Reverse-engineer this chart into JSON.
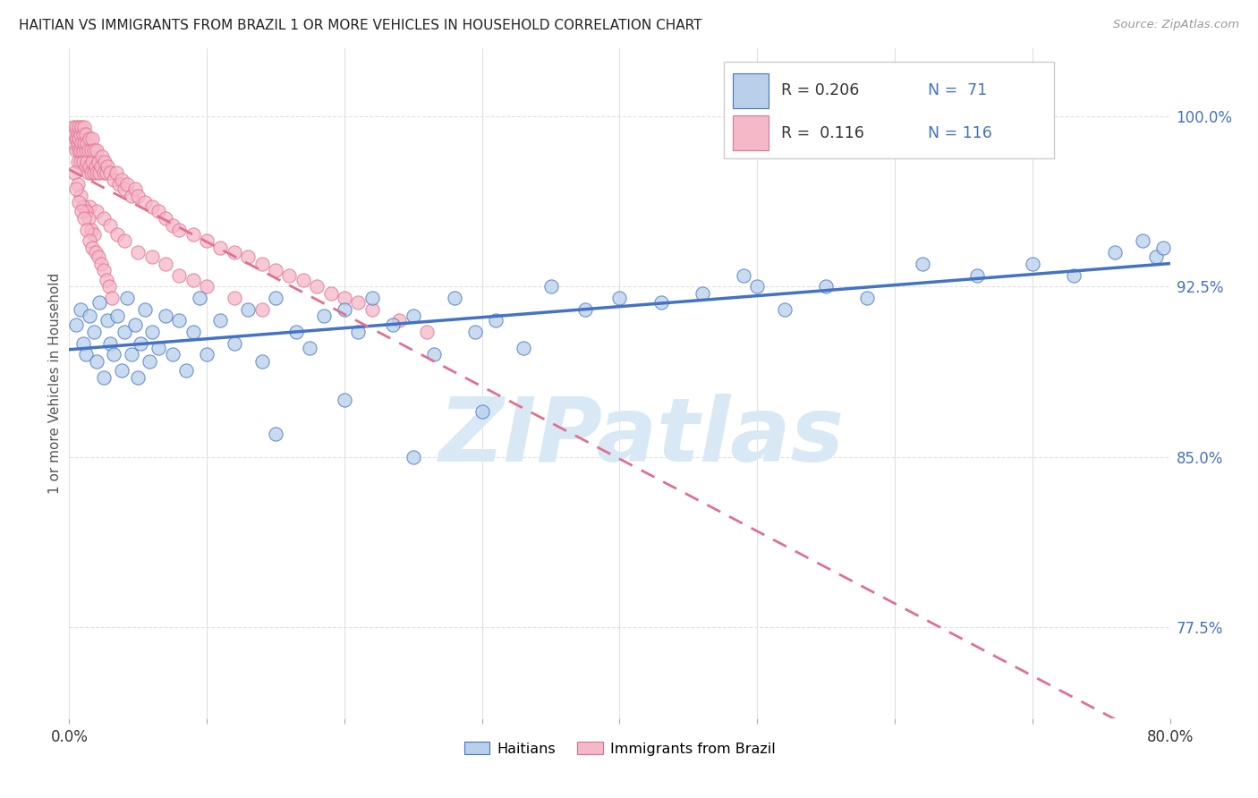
{
  "title": "HAITIAN VS IMMIGRANTS FROM BRAZIL 1 OR MORE VEHICLES IN HOUSEHOLD CORRELATION CHART",
  "source": "Source: ZipAtlas.com",
  "ylabel": "1 or more Vehicles in Household",
  "xlim": [
    0.0,
    0.8
  ],
  "ylim": [
    0.735,
    1.03
  ],
  "xticks": [
    0.0,
    0.1,
    0.2,
    0.3,
    0.4,
    0.5,
    0.6,
    0.7,
    0.8
  ],
  "xticklabels": [
    "0.0%",
    "",
    "",
    "",
    "",
    "",
    "",
    "",
    "80.0%"
  ],
  "yticks_right": [
    0.775,
    0.85,
    0.925,
    1.0
  ],
  "ytick_right_labels": [
    "77.5%",
    "85.0%",
    "92.5%",
    "100.0%"
  ],
  "blue_dot_fill": "#b8d0ea",
  "blue_dot_edge": "#4472c4",
  "pink_dot_fill": "#f5b8c8",
  "pink_dot_edge": "#e07090",
  "blue_line_color": "#4472c4",
  "pink_line_color": "#e07090",
  "legend_R_blue": "0.206",
  "legend_N_blue": "71",
  "legend_R_pink": "0.116",
  "legend_N_pink": "116",
  "watermark": "ZIPatlas",
  "watermark_color": "#d8e8f5",
  "background_color": "#ffffff",
  "grid_color": "#e0e0e0",
  "blue_x": [
    0.005,
    0.008,
    0.01,
    0.012,
    0.015,
    0.018,
    0.02,
    0.022,
    0.025,
    0.028,
    0.03,
    0.032,
    0.035,
    0.038,
    0.04,
    0.042,
    0.045,
    0.048,
    0.05,
    0.052,
    0.055,
    0.058,
    0.06,
    0.065,
    0.07,
    0.075,
    0.08,
    0.085,
    0.09,
    0.095,
    0.1,
    0.11,
    0.12,
    0.13,
    0.14,
    0.15,
    0.165,
    0.175,
    0.185,
    0.2,
    0.21,
    0.22,
    0.235,
    0.25,
    0.265,
    0.28,
    0.295,
    0.31,
    0.33,
    0.35,
    0.375,
    0.4,
    0.43,
    0.46,
    0.49,
    0.52,
    0.55,
    0.58,
    0.62,
    0.66,
    0.7,
    0.73,
    0.76,
    0.78,
    0.79,
    0.795,
    0.15,
    0.2,
    0.25,
    0.3,
    0.5
  ],
  "blue_y": [
    0.908,
    0.915,
    0.9,
    0.895,
    0.912,
    0.905,
    0.892,
    0.918,
    0.885,
    0.91,
    0.9,
    0.895,
    0.912,
    0.888,
    0.905,
    0.92,
    0.895,
    0.908,
    0.885,
    0.9,
    0.915,
    0.892,
    0.905,
    0.898,
    0.912,
    0.895,
    0.91,
    0.888,
    0.905,
    0.92,
    0.895,
    0.91,
    0.9,
    0.915,
    0.892,
    0.92,
    0.905,
    0.898,
    0.912,
    0.915,
    0.905,
    0.92,
    0.908,
    0.912,
    0.895,
    0.92,
    0.905,
    0.91,
    0.898,
    0.925,
    0.915,
    0.92,
    0.918,
    0.922,
    0.93,
    0.915,
    0.925,
    0.92,
    0.935,
    0.93,
    0.935,
    0.93,
    0.94,
    0.945,
    0.938,
    0.942,
    0.86,
    0.875,
    0.85,
    0.87,
    0.925
  ],
  "pink_x": [
    0.003,
    0.004,
    0.004,
    0.005,
    0.005,
    0.005,
    0.006,
    0.006,
    0.006,
    0.007,
    0.007,
    0.007,
    0.008,
    0.008,
    0.008,
    0.009,
    0.009,
    0.01,
    0.01,
    0.01,
    0.011,
    0.011,
    0.012,
    0.012,
    0.012,
    0.013,
    0.013,
    0.014,
    0.014,
    0.015,
    0.015,
    0.016,
    0.016,
    0.017,
    0.017,
    0.018,
    0.018,
    0.019,
    0.02,
    0.02,
    0.021,
    0.022,
    0.023,
    0.024,
    0.025,
    0.026,
    0.027,
    0.028,
    0.03,
    0.032,
    0.034,
    0.036,
    0.038,
    0.04,
    0.042,
    0.045,
    0.048,
    0.05,
    0.055,
    0.06,
    0.065,
    0.07,
    0.075,
    0.08,
    0.09,
    0.1,
    0.11,
    0.12,
    0.13,
    0.14,
    0.15,
    0.16,
    0.17,
    0.18,
    0.19,
    0.2,
    0.21,
    0.22,
    0.24,
    0.26,
    0.015,
    0.02,
    0.025,
    0.03,
    0.035,
    0.04,
    0.05,
    0.06,
    0.07,
    0.08,
    0.09,
    0.1,
    0.12,
    0.14,
    0.004,
    0.006,
    0.008,
    0.01,
    0.012,
    0.014,
    0.016,
    0.018,
    0.005,
    0.007,
    0.009,
    0.011,
    0.013,
    0.015,
    0.017,
    0.019,
    0.021,
    0.023,
    0.025,
    0.027,
    0.029,
    0.031
  ],
  "pink_y": [
    0.995,
    0.988,
    0.992,
    0.985,
    0.99,
    0.995,
    0.98,
    0.988,
    0.992,
    0.985,
    0.99,
    0.995,
    0.98,
    0.985,
    0.992,
    0.988,
    0.995,
    0.98,
    0.985,
    0.992,
    0.988,
    0.995,
    0.978,
    0.985,
    0.992,
    0.98,
    0.988,
    0.975,
    0.985,
    0.978,
    0.99,
    0.975,
    0.985,
    0.98,
    0.99,
    0.975,
    0.985,
    0.978,
    0.975,
    0.985,
    0.98,
    0.975,
    0.978,
    0.982,
    0.975,
    0.98,
    0.975,
    0.978,
    0.975,
    0.972,
    0.975,
    0.97,
    0.972,
    0.968,
    0.97,
    0.965,
    0.968,
    0.965,
    0.962,
    0.96,
    0.958,
    0.955,
    0.952,
    0.95,
    0.948,
    0.945,
    0.942,
    0.94,
    0.938,
    0.935,
    0.932,
    0.93,
    0.928,
    0.925,
    0.922,
    0.92,
    0.918,
    0.915,
    0.91,
    0.905,
    0.96,
    0.958,
    0.955,
    0.952,
    0.948,
    0.945,
    0.94,
    0.938,
    0.935,
    0.93,
    0.928,
    0.925,
    0.92,
    0.915,
    0.975,
    0.97,
    0.965,
    0.96,
    0.958,
    0.955,
    0.95,
    0.948,
    0.968,
    0.962,
    0.958,
    0.955,
    0.95,
    0.945,
    0.942,
    0.94,
    0.938,
    0.935,
    0.932,
    0.928,
    0.925,
    0.92
  ]
}
